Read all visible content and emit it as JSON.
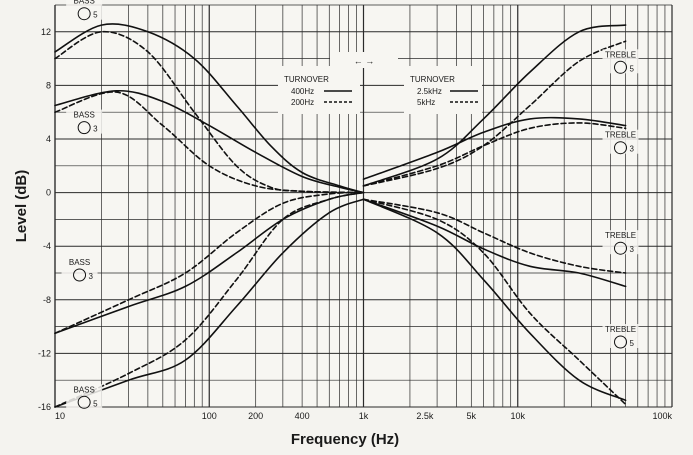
{
  "chart_data": {
    "type": "line",
    "title": "",
    "xlabel": "Frequency (Hz)",
    "ylabel": "Level (dB)",
    "xscale": "log",
    "xlim": [
      10,
      100000
    ],
    "ylim": [
      -16,
      14
    ],
    "grid": true,
    "x_ticks": [
      {
        "value": 10,
        "label": "10"
      },
      {
        "value": 100,
        "label": "100"
      },
      {
        "value": 200,
        "label": "200"
      },
      {
        "value": 400,
        "label": "400"
      },
      {
        "value": 1000,
        "label": "1k"
      },
      {
        "value": 2500,
        "label": "2.5k"
      },
      {
        "value": 5000,
        "label": "5k"
      },
      {
        "value": 10000,
        "label": "10k"
      },
      {
        "value": 100000,
        "label": "100k"
      }
    ],
    "y_ticks": [
      12,
      8,
      4,
      0,
      -4,
      -8,
      -12,
      -16
    ],
    "legend": {
      "arrows": "← →",
      "left_title": "TURNOVER",
      "left_items": [
        {
          "label": "400Hz",
          "style": "solid"
        },
        {
          "label": "200Hz",
          "style": "dashed"
        }
      ],
      "right_title": "TURNOVER",
      "right_items": [
        {
          "label": "2.5kHz",
          "style": "solid"
        },
        {
          "label": "5kHz",
          "style": "dashed"
        }
      ]
    },
    "annotations": [
      {
        "label": "BASS",
        "num": "5",
        "x": 15,
        "y": 13.5
      },
      {
        "label": "BASS",
        "num": "3",
        "x": 15,
        "y": 5
      },
      {
        "label": "BASS",
        "num": "3",
        "x": 14,
        "y": -6
      },
      {
        "label": "BASS",
        "num": "5",
        "x": 15,
        "y": -15.5
      },
      {
        "label": "TREBLE",
        "num": "5",
        "x": 45000,
        "y": 9.5
      },
      {
        "label": "TREBLE",
        "num": "3",
        "x": 45000,
        "y": 3.5
      },
      {
        "label": "TREBLE",
        "num": "3",
        "x": 45000,
        "y": -4
      },
      {
        "label": "TREBLE",
        "num": "5",
        "x": 45000,
        "y": -11
      }
    ],
    "series": [
      {
        "style": "solid",
        "points": [
          [
            10,
            10.5
          ],
          [
            20,
            12.5
          ],
          [
            40,
            12
          ],
          [
            80,
            10
          ],
          [
            150,
            6.5
          ],
          [
            250,
            3.5
          ],
          [
            400,
            1.5
          ],
          [
            700,
            0.5
          ],
          [
            1000,
            0
          ]
        ]
      },
      {
        "style": "dashed",
        "points": [
          [
            10,
            10
          ],
          [
            20,
            12
          ],
          [
            40,
            10.5
          ],
          [
            80,
            6
          ],
          [
            150,
            2
          ],
          [
            250,
            0.4
          ],
          [
            400,
            0.1
          ],
          [
            1000,
            0
          ]
        ]
      },
      {
        "style": "solid",
        "points": [
          [
            10,
            6.5
          ],
          [
            25,
            7.6
          ],
          [
            50,
            6.8
          ],
          [
            100,
            5
          ],
          [
            200,
            3
          ],
          [
            400,
            1.2
          ],
          [
            700,
            0.4
          ],
          [
            1000,
            0
          ]
        ]
      },
      {
        "style": "dashed",
        "points": [
          [
            10,
            6
          ],
          [
            25,
            7.5
          ],
          [
            50,
            5
          ],
          [
            100,
            2
          ],
          [
            200,
            0.5
          ],
          [
            400,
            0.1
          ],
          [
            1000,
            0
          ]
        ]
      },
      {
        "style": "solid",
        "points": [
          [
            10,
            -10.5
          ],
          [
            30,
            -8.5
          ],
          [
            70,
            -7
          ],
          [
            150,
            -4.5
          ],
          [
            300,
            -2
          ],
          [
            600,
            -0.5
          ],
          [
            1000,
            0
          ]
        ]
      },
      {
        "style": "dashed",
        "points": [
          [
            10,
            -10.5
          ],
          [
            30,
            -8
          ],
          [
            70,
            -6
          ],
          [
            150,
            -3
          ],
          [
            300,
            -0.8
          ],
          [
            600,
            -0.1
          ],
          [
            1000,
            0
          ]
        ]
      },
      {
        "style": "solid",
        "points": [
          [
            10,
            -16
          ],
          [
            30,
            -14
          ],
          [
            70,
            -12.5
          ],
          [
            150,
            -8.5
          ],
          [
            300,
            -4.5
          ],
          [
            600,
            -1.5
          ],
          [
            1000,
            -0.5
          ]
        ]
      },
      {
        "style": "dashed",
        "points": [
          [
            10,
            -16
          ],
          [
            30,
            -13.5
          ],
          [
            70,
            -11
          ],
          [
            150,
            -6.5
          ],
          [
            300,
            -2
          ],
          [
            600,
            -0.5
          ],
          [
            1000,
            0
          ]
        ]
      },
      {
        "style": "solid",
        "points": [
          [
            1000,
            0.5
          ],
          [
            3000,
            2.5
          ],
          [
            6000,
            5.5
          ],
          [
            12000,
            9
          ],
          [
            25000,
            12
          ],
          [
            50000,
            12.5
          ]
        ]
      },
      {
        "style": "dashed",
        "points": [
          [
            1000,
            0.5
          ],
          [
            3000,
            1.8
          ],
          [
            6000,
            3.5
          ],
          [
            12000,
            6.5
          ],
          [
            25000,
            9.8
          ],
          [
            50000,
            11.3
          ]
        ]
      },
      {
        "style": "solid",
        "points": [
          [
            1000,
            1
          ],
          [
            3000,
            3
          ],
          [
            6000,
            4.5
          ],
          [
            12000,
            5.5
          ],
          [
            25000,
            5.5
          ],
          [
            50000,
            5
          ]
        ]
      },
      {
        "style": "dashed",
        "points": [
          [
            1000,
            0.5
          ],
          [
            3000,
            2
          ],
          [
            6000,
            3.5
          ],
          [
            12000,
            4.8
          ],
          [
            25000,
            5.2
          ],
          [
            50000,
            4.8
          ]
        ]
      },
      {
        "style": "solid",
        "points": [
          [
            1000,
            -0.5
          ],
          [
            3000,
            -2.5
          ],
          [
            6000,
            -4.2
          ],
          [
            12000,
            -5.5
          ],
          [
            25000,
            -6
          ],
          [
            50000,
            -7
          ]
        ]
      },
      {
        "style": "dashed",
        "points": [
          [
            1000,
            -0.5
          ],
          [
            3000,
            -1.5
          ],
          [
            6000,
            -3
          ],
          [
            12000,
            -4.5
          ],
          [
            25000,
            -5.5
          ],
          [
            50000,
            -6
          ]
        ]
      },
      {
        "style": "solid",
        "points": [
          [
            1000,
            -0.5
          ],
          [
            3000,
            -3
          ],
          [
            6000,
            -6.5
          ],
          [
            12000,
            -10.5
          ],
          [
            25000,
            -14
          ],
          [
            50000,
            -15.5
          ]
        ]
      },
      {
        "style": "dashed",
        "points": [
          [
            1000,
            -0.5
          ],
          [
            3000,
            -2
          ],
          [
            6000,
            -4.5
          ],
          [
            12000,
            -9
          ],
          [
            25000,
            -12.5
          ],
          [
            50000,
            -15.8
          ]
        ]
      }
    ]
  }
}
